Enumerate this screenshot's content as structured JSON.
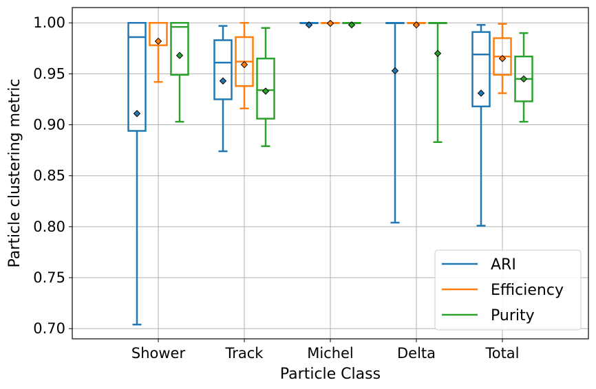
{
  "chart_data": {
    "type": "boxplot",
    "xlabel": "Particle Class",
    "ylabel": "Particle clustering metric",
    "categories": [
      "Shower",
      "Track",
      "Michel",
      "Delta",
      "Total"
    ],
    "ylim": [
      0.69,
      1.015
    ],
    "yticks": [
      "0.70",
      "0.75",
      "0.80",
      "0.85",
      "0.90",
      "0.95",
      "1.00"
    ],
    "grid": true,
    "legend_position": "bottom-right",
    "series": [
      {
        "name": "ARI",
        "color": "#1f77b4",
        "boxes": [
          {
            "whislo": 0.704,
            "q1": 0.894,
            "med": 0.986,
            "q3": 1.0,
            "whishi": 1.0,
            "mean": 0.911
          },
          {
            "whislo": 0.874,
            "q1": 0.925,
            "med": 0.961,
            "q3": 0.983,
            "whishi": 0.997,
            "mean": 0.943
          },
          {
            "whislo": 1.0,
            "q1": 1.0,
            "med": 1.0,
            "q3": 1.0,
            "whishi": 1.0,
            "mean": 0.998
          },
          {
            "whislo": 0.804,
            "q1": 1.0,
            "med": 1.0,
            "q3": 1.0,
            "whishi": 1.0,
            "mean": 0.953
          },
          {
            "whislo": 0.801,
            "q1": 0.918,
            "med": 0.969,
            "q3": 0.991,
            "whishi": 0.998,
            "mean": 0.931
          }
        ]
      },
      {
        "name": "Efficiency",
        "color": "#ff7f0e",
        "boxes": [
          {
            "whislo": 0.942,
            "q1": 0.978,
            "med": 1.0,
            "q3": 1.0,
            "whishi": 1.0,
            "mean": 0.982
          },
          {
            "whislo": 0.916,
            "q1": 0.938,
            "med": 0.962,
            "q3": 0.986,
            "whishi": 1.0,
            "mean": 0.959
          },
          {
            "whislo": 1.0,
            "q1": 1.0,
            "med": 1.0,
            "q3": 1.0,
            "whishi": 1.0,
            "mean": 0.9995
          },
          {
            "whislo": 1.0,
            "q1": 1.0,
            "med": 1.0,
            "q3": 1.0,
            "whishi": 1.0,
            "mean": 0.998
          },
          {
            "whislo": 0.931,
            "q1": 0.949,
            "med": 0.967,
            "q3": 0.985,
            "whishi": 0.999,
            "mean": 0.965
          }
        ]
      },
      {
        "name": "Purity",
        "color": "#2ca02c",
        "boxes": [
          {
            "whislo": 0.903,
            "q1": 0.949,
            "med": 0.996,
            "q3": 1.0,
            "whishi": 1.0,
            "mean": 0.968
          },
          {
            "whislo": 0.879,
            "q1": 0.906,
            "med": 0.934,
            "q3": 0.965,
            "whishi": 0.995,
            "mean": 0.933
          },
          {
            "whislo": 1.0,
            "q1": 1.0,
            "med": 1.0,
            "q3": 1.0,
            "whishi": 1.0,
            "mean": 0.998
          },
          {
            "whislo": 0.883,
            "q1": 1.0,
            "med": 1.0,
            "q3": 1.0,
            "whishi": 1.0,
            "mean": 0.97
          },
          {
            "whislo": 0.903,
            "q1": 0.923,
            "med": 0.945,
            "q3": 0.967,
            "whishi": 0.99,
            "mean": 0.945
          }
        ]
      }
    ]
  }
}
